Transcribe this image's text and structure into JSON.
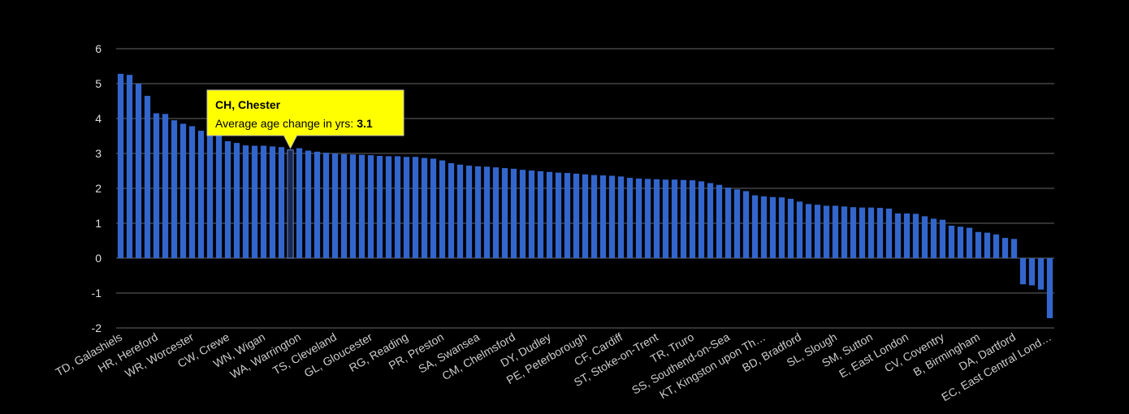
{
  "chart_data": {
    "type": "bar",
    "categories": [
      "TD, Galashiels",
      null,
      null,
      null,
      "HR, Hereford",
      null,
      null,
      null,
      "WR, Worcester",
      null,
      null,
      null,
      "CW, Crewe",
      null,
      null,
      null,
      "WN, Wigan",
      null,
      null,
      null,
      "WA, Warrington",
      null,
      null,
      null,
      "TS, Cleveland",
      null,
      null,
      null,
      "GL, Gloucester",
      null,
      null,
      null,
      "RG, Reading",
      null,
      null,
      null,
      "PR, Preston",
      null,
      null,
      null,
      "SA, Swansea",
      null,
      null,
      null,
      "CM, Chelmsford",
      null,
      null,
      null,
      "DY, Dudley",
      null,
      null,
      null,
      "PE, Peterborough",
      null,
      null,
      null,
      "CF, Cardiff",
      null,
      null,
      null,
      "ST, Stoke-on-Trent",
      null,
      null,
      null,
      "TR, Truro",
      null,
      null,
      null,
      "SS, Southend-on-Sea",
      null,
      null,
      null,
      "KT, Kingston upon Th…",
      null,
      null,
      null,
      "BD, Bradford",
      null,
      null,
      null,
      "SL, Slough",
      null,
      null,
      null,
      "SM, Sutton",
      null,
      null,
      null,
      "E, East London",
      null,
      null,
      null,
      "CV, Coventry",
      null,
      null,
      null,
      "B, Birmingham",
      null,
      null,
      null,
      "DA, Dartford",
      null,
      null,
      null,
      "EC, East Central Lond…"
    ],
    "values": [
      5.28,
      5.25,
      5.0,
      4.65,
      4.15,
      4.13,
      3.95,
      3.85,
      3.78,
      3.65,
      3.55,
      3.5,
      3.35,
      3.3,
      3.23,
      3.22,
      3.22,
      3.2,
      3.18,
      3.1,
      3.15,
      3.08,
      3.05,
      3.02,
      3.0,
      2.98,
      2.97,
      2.96,
      2.95,
      2.93,
      2.92,
      2.92,
      2.9,
      2.9,
      2.87,
      2.85,
      2.8,
      2.72,
      2.68,
      2.65,
      2.63,
      2.62,
      2.6,
      2.58,
      2.56,
      2.53,
      2.51,
      2.49,
      2.47,
      2.45,
      2.44,
      2.42,
      2.4,
      2.38,
      2.37,
      2.36,
      2.34,
      2.3,
      2.28,
      2.27,
      2.26,
      2.25,
      2.25,
      2.24,
      2.23,
      2.2,
      2.15,
      2.1,
      2.02,
      1.97,
      1.92,
      1.8,
      1.77,
      1.75,
      1.74,
      1.7,
      1.62,
      1.55,
      1.53,
      1.5,
      1.5,
      1.48,
      1.46,
      1.45,
      1.45,
      1.44,
      1.42,
      1.28,
      1.28,
      1.27,
      1.2,
      1.13,
      1.1,
      0.93,
      0.9,
      0.87,
      0.75,
      0.73,
      0.68,
      0.58,
      0.55,
      -0.75,
      -0.78,
      -0.9,
      -1.72
    ],
    "color": "#3366cc",
    "highlight_color": "#1a2a55",
    "ylim": [
      -2,
      6
    ],
    "yticks": [
      -2,
      -1,
      0,
      1,
      2,
      3,
      4,
      5,
      6
    ],
    "grid": true,
    "tooltip": {
      "title": "CH, Chester",
      "text": "Average age change in yrs:",
      "value": 3.1
    }
  }
}
